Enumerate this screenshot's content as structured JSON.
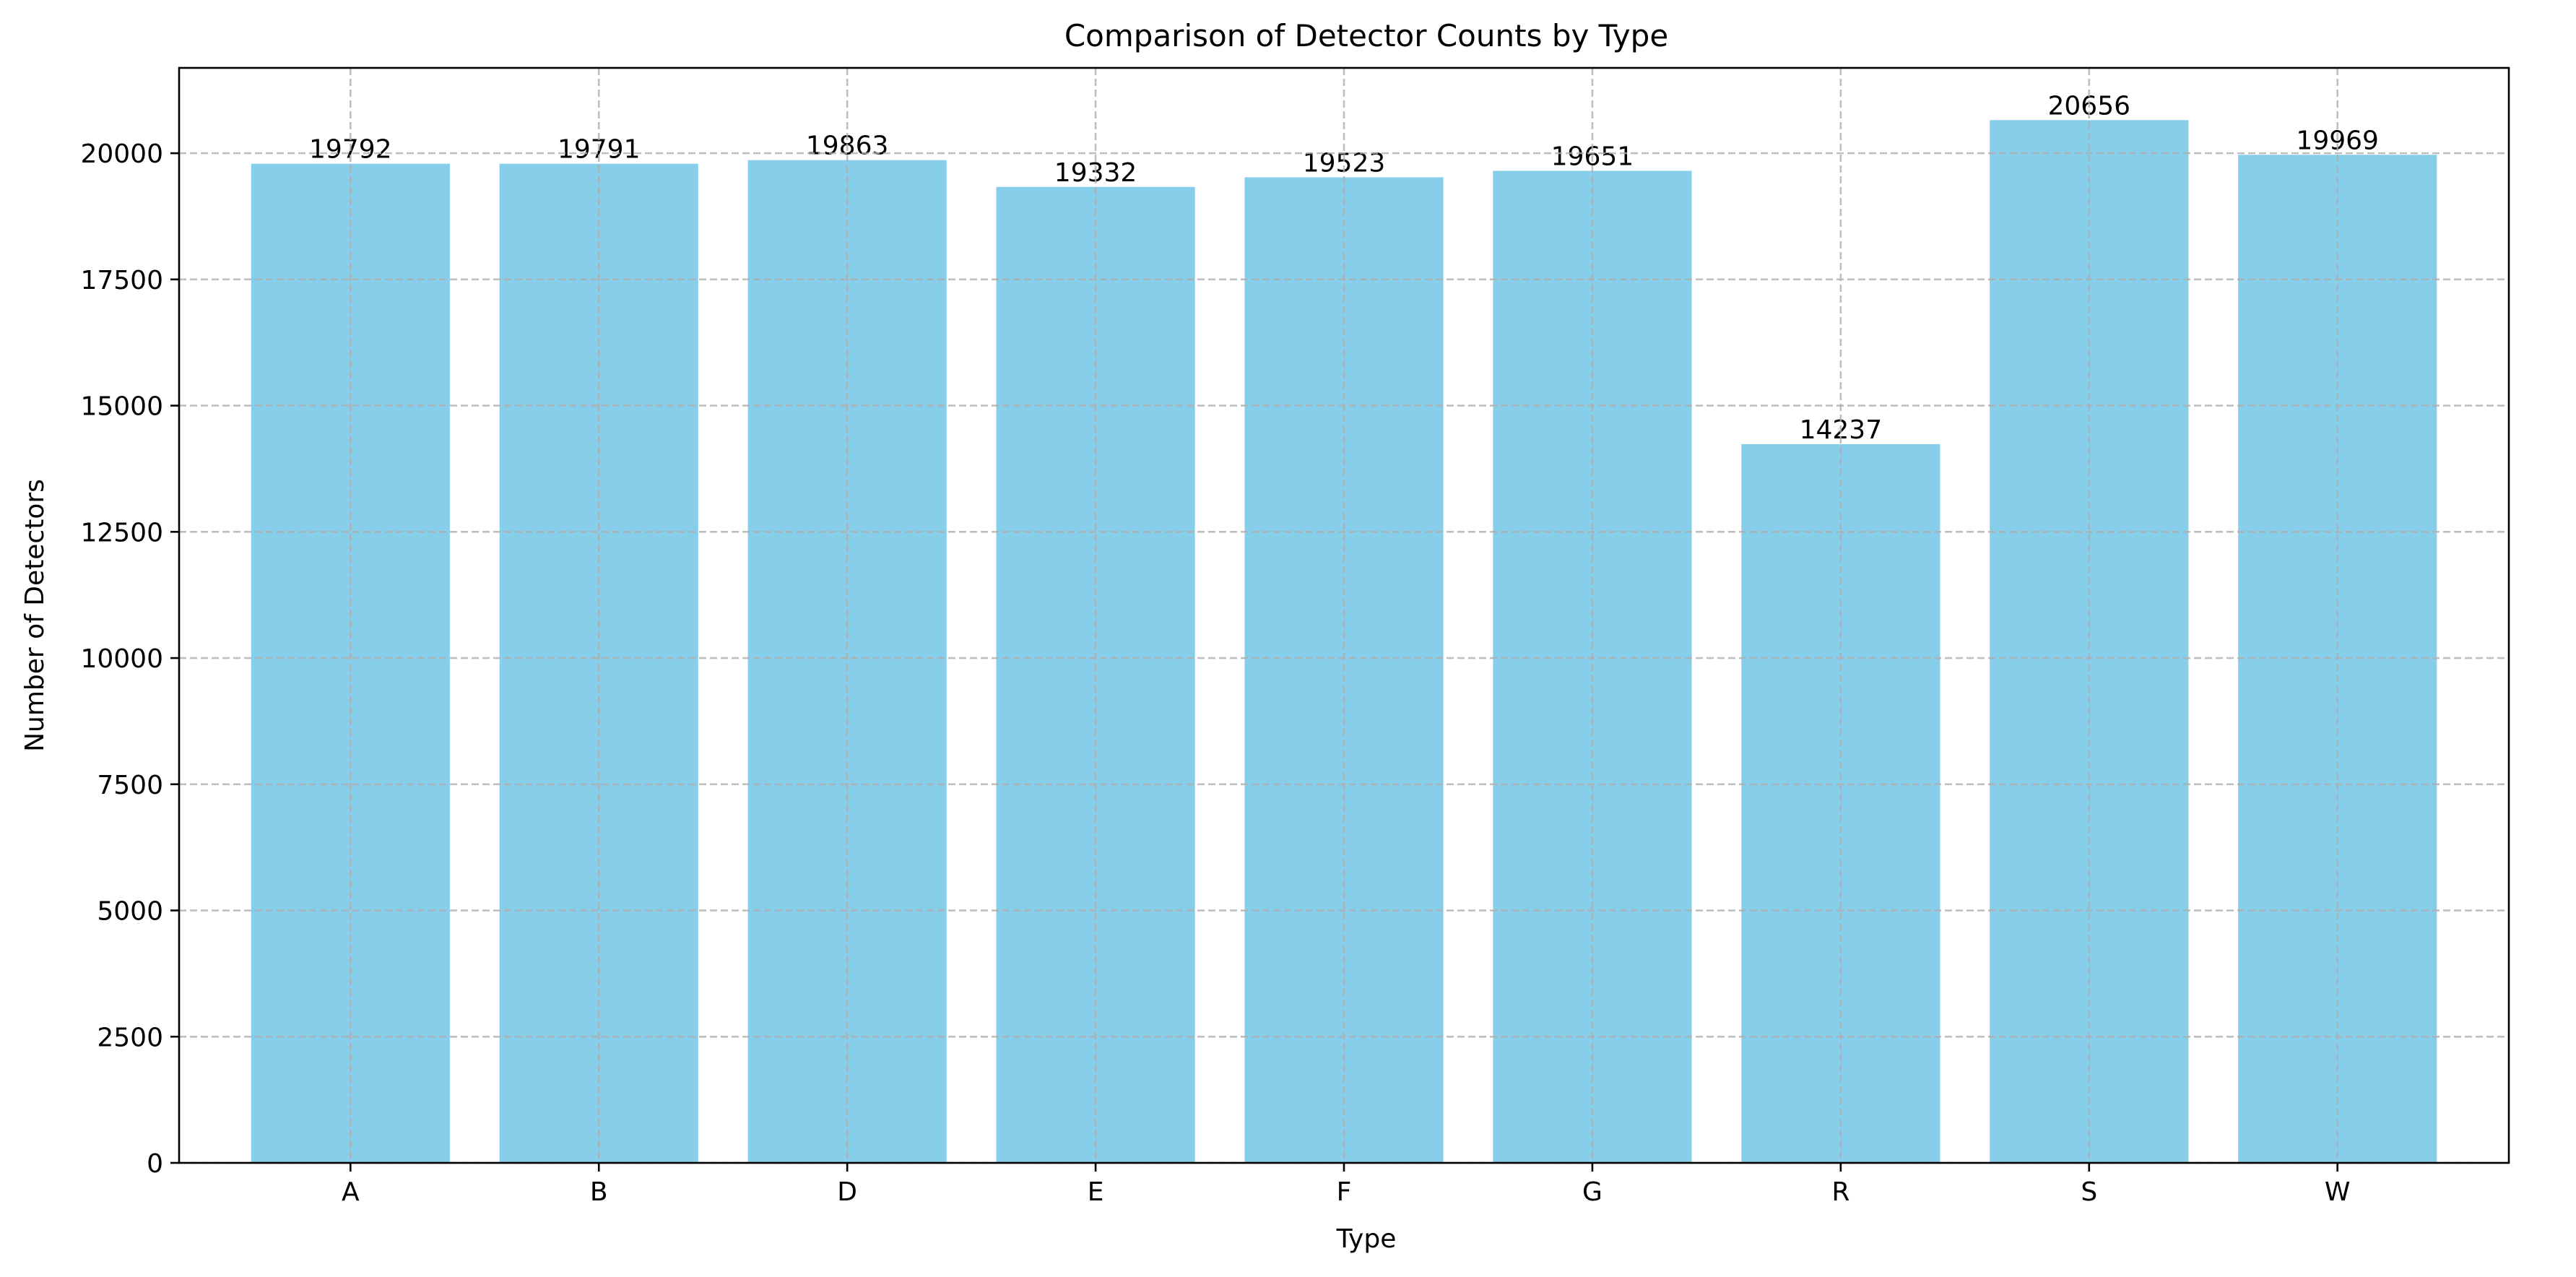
{
  "chart_data": {
    "type": "bar",
    "title": "Comparison of Detector Counts by Type",
    "xlabel": "Type",
    "ylabel": "Number of Detectors",
    "categories": [
      "A",
      "B",
      "D",
      "E",
      "F",
      "G",
      "R",
      "S",
      "W"
    ],
    "values": [
      19792,
      19791,
      19863,
      19332,
      19523,
      19651,
      14237,
      20656,
      19969
    ],
    "value_labels": [
      "19792",
      "19791",
      "19863",
      "19332",
      "19523",
      "19651",
      "14237",
      "20656",
      "19969"
    ],
    "ylim": [
      0,
      21690
    ],
    "yticks": [
      0,
      2500,
      5000,
      7500,
      10000,
      12500,
      15000,
      17500,
      20000
    ],
    "ytick_labels": [
      "0",
      "2500",
      "5000",
      "7500",
      "10000",
      "12500",
      "15000",
      "17500",
      "20000"
    ],
    "grid": true,
    "bar_color": "#87CEEB"
  }
}
